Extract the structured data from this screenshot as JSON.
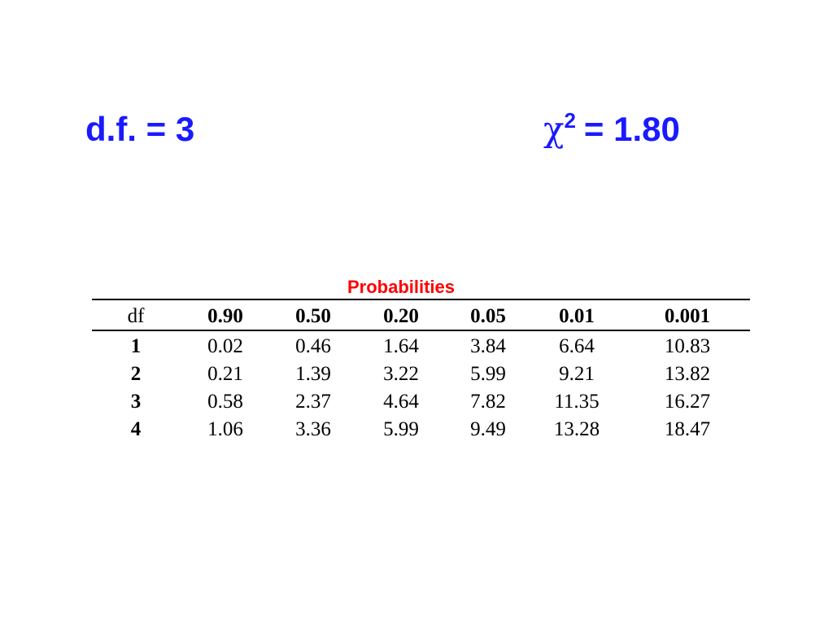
{
  "header": {
    "df_label": "d.f. = 3",
    "chi_symbol": "χ",
    "chi_superscript": "2",
    "chi_value": "= 1.80"
  },
  "table": {
    "caption": "Probabilities",
    "columns": [
      "df",
      "0.90",
      "0.50",
      "0.20",
      "0.05",
      "0.01",
      "0.001"
    ],
    "rows": [
      [
        "1",
        "0.02",
        "0.46",
        "1.64",
        "3.84",
        "6.64",
        "10.83"
      ],
      [
        "2",
        "0.21",
        "1.39",
        "3.22",
        "5.99",
        "9.21",
        "13.82"
      ],
      [
        "3",
        "0.58",
        "2.37",
        "4.64",
        "7.82",
        "11.35",
        "16.27"
      ],
      [
        "4",
        "1.06",
        "3.36",
        "5.99",
        "9.49",
        "13.28",
        "18.47"
      ]
    ]
  }
}
